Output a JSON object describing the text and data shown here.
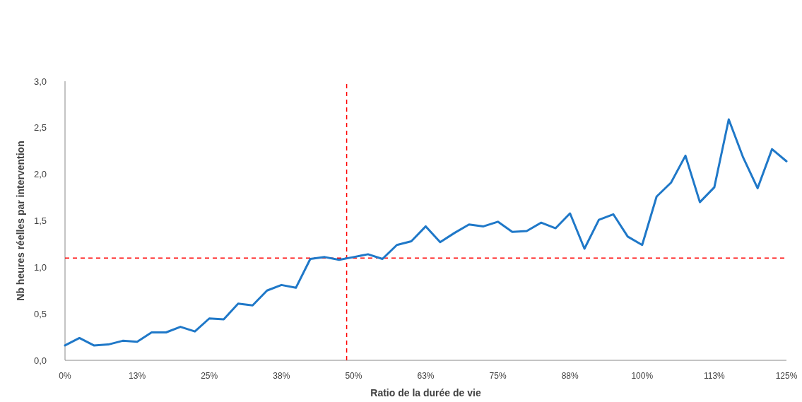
{
  "chart_data": {
    "type": "line",
    "xlabel": "Ratio de la durée de vie",
    "ylabel": "Nb heures réelles par intervention",
    "x": [
      0,
      2.5,
      5,
      7.5,
      10,
      12.5,
      15,
      17.5,
      20,
      22.5,
      25,
      27.5,
      30,
      32.5,
      35,
      37.5,
      40,
      42.5,
      45,
      47.5,
      50,
      52.5,
      55,
      57.5,
      60,
      62.5,
      65,
      67.5,
      70,
      72.5,
      75,
      77.5,
      80,
      82.5,
      85,
      87.5,
      90,
      92.5,
      95,
      97.5,
      100,
      102.5,
      105,
      107.5,
      110,
      112.5,
      115,
      117.5,
      120,
      122.5,
      125
    ],
    "series": [
      {
        "color": "#1f78c8",
        "values": [
          0.16,
          0.24,
          0.16,
          0.17,
          0.21,
          0.2,
          0.3,
          0.3,
          0.36,
          0.31,
          0.45,
          0.44,
          0.61,
          0.59,
          0.75,
          0.81,
          0.78,
          1.09,
          1.11,
          1.08,
          1.11,
          1.14,
          1.09,
          1.24,
          1.28,
          1.44,
          1.27,
          1.37,
          1.46,
          1.44,
          1.49,
          1.38,
          1.39,
          1.48,
          1.42,
          1.58,
          1.2,
          1.51,
          1.57,
          1.33,
          1.24,
          1.76,
          1.91,
          2.2,
          1.7,
          1.86,
          2.59,
          2.18,
          1.85,
          2.27,
          2.14
        ]
      }
    ],
    "xlim": [
      0,
      125
    ],
    "xticks": [
      {
        "value": 0,
        "label": "0%"
      },
      {
        "value": 12.5,
        "label": "13%"
      },
      {
        "value": 25,
        "label": "25%"
      },
      {
        "value": 37.5,
        "label": "38%"
      },
      {
        "value": 50,
        "label": "50%"
      },
      {
        "value": 62.5,
        "label": "63%"
      },
      {
        "value": 75,
        "label": "75%"
      },
      {
        "value": 87.5,
        "label": "88%"
      },
      {
        "value": 100,
        "label": "100%"
      },
      {
        "value": 112.5,
        "label": "113%"
      },
      {
        "value": 125,
        "label": "125%"
      }
    ],
    "ylim": [
      0,
      3
    ],
    "yticks": [
      {
        "value": 0,
        "label": "0,0"
      },
      {
        "value": 0.5,
        "label": "0,5"
      },
      {
        "value": 1,
        "label": "1,0"
      },
      {
        "value": 1.5,
        "label": "1,5"
      },
      {
        "value": 2,
        "label": "2,0"
      },
      {
        "value": 2.5,
        "label": "2,5"
      },
      {
        "value": 3,
        "label": "3,0"
      }
    ],
    "ref_lines": [
      {
        "axis": "y",
        "value": 1.1,
        "color": "#ff0000",
        "line_style": "dashed"
      },
      {
        "axis": "x",
        "value": 48.8,
        "color": "#ff0000",
        "line_style": "dashed"
      }
    ],
    "grid": false,
    "marker": "none",
    "line_style": "solid"
  }
}
